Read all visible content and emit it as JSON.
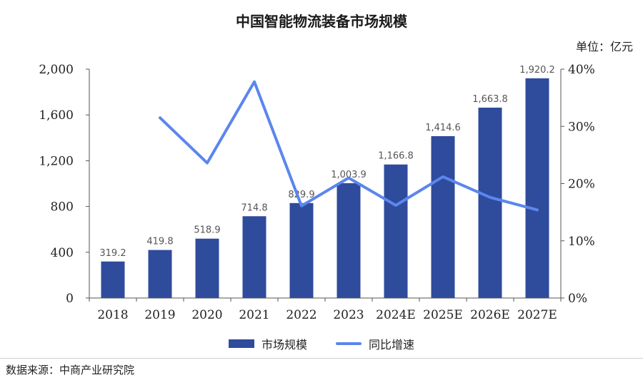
{
  "chart_data": {
    "type": "bar",
    "title": "中国智能物流装备市场规模",
    "unit": "单位：亿元",
    "categories": [
      "2018",
      "2019",
      "2020",
      "2021",
      "2022",
      "2023",
      "2024E",
      "2025E",
      "2026E",
      "2027E"
    ],
    "series": [
      {
        "name": "市场规模",
        "type": "bar",
        "color": "#2f4b9c",
        "values": [
          319.2,
          419.8,
          518.9,
          714.8,
          829.9,
          1003.9,
          1166.8,
          1414.6,
          1663.8,
          1920.2
        ],
        "labels": [
          "319.2",
          "419.8",
          "518.9",
          "714.8",
          "829.9",
          "1,003.9",
          "1,166.8",
          "1,414.6",
          "1,663.8",
          "1,920.2"
        ]
      },
      {
        "name": "同比增速",
        "type": "line",
        "axis": "right",
        "color": "#5b86ee",
        "values": [
          null,
          31.5,
          23.6,
          37.8,
          16.1,
          21.0,
          16.2,
          21.2,
          17.6,
          15.4
        ]
      }
    ],
    "y_left": {
      "min": 0,
      "max": 2000,
      "ticks": [
        "0",
        "400",
        "800",
        "1,200",
        "1,600",
        "2,000"
      ]
    },
    "y_right": {
      "min": 0,
      "max": 40,
      "ticks": [
        "0%",
        "10%",
        "20%",
        "30%",
        "40%"
      ]
    },
    "legend_position": "bottom"
  },
  "source": "数据来源：中商产业研究院"
}
